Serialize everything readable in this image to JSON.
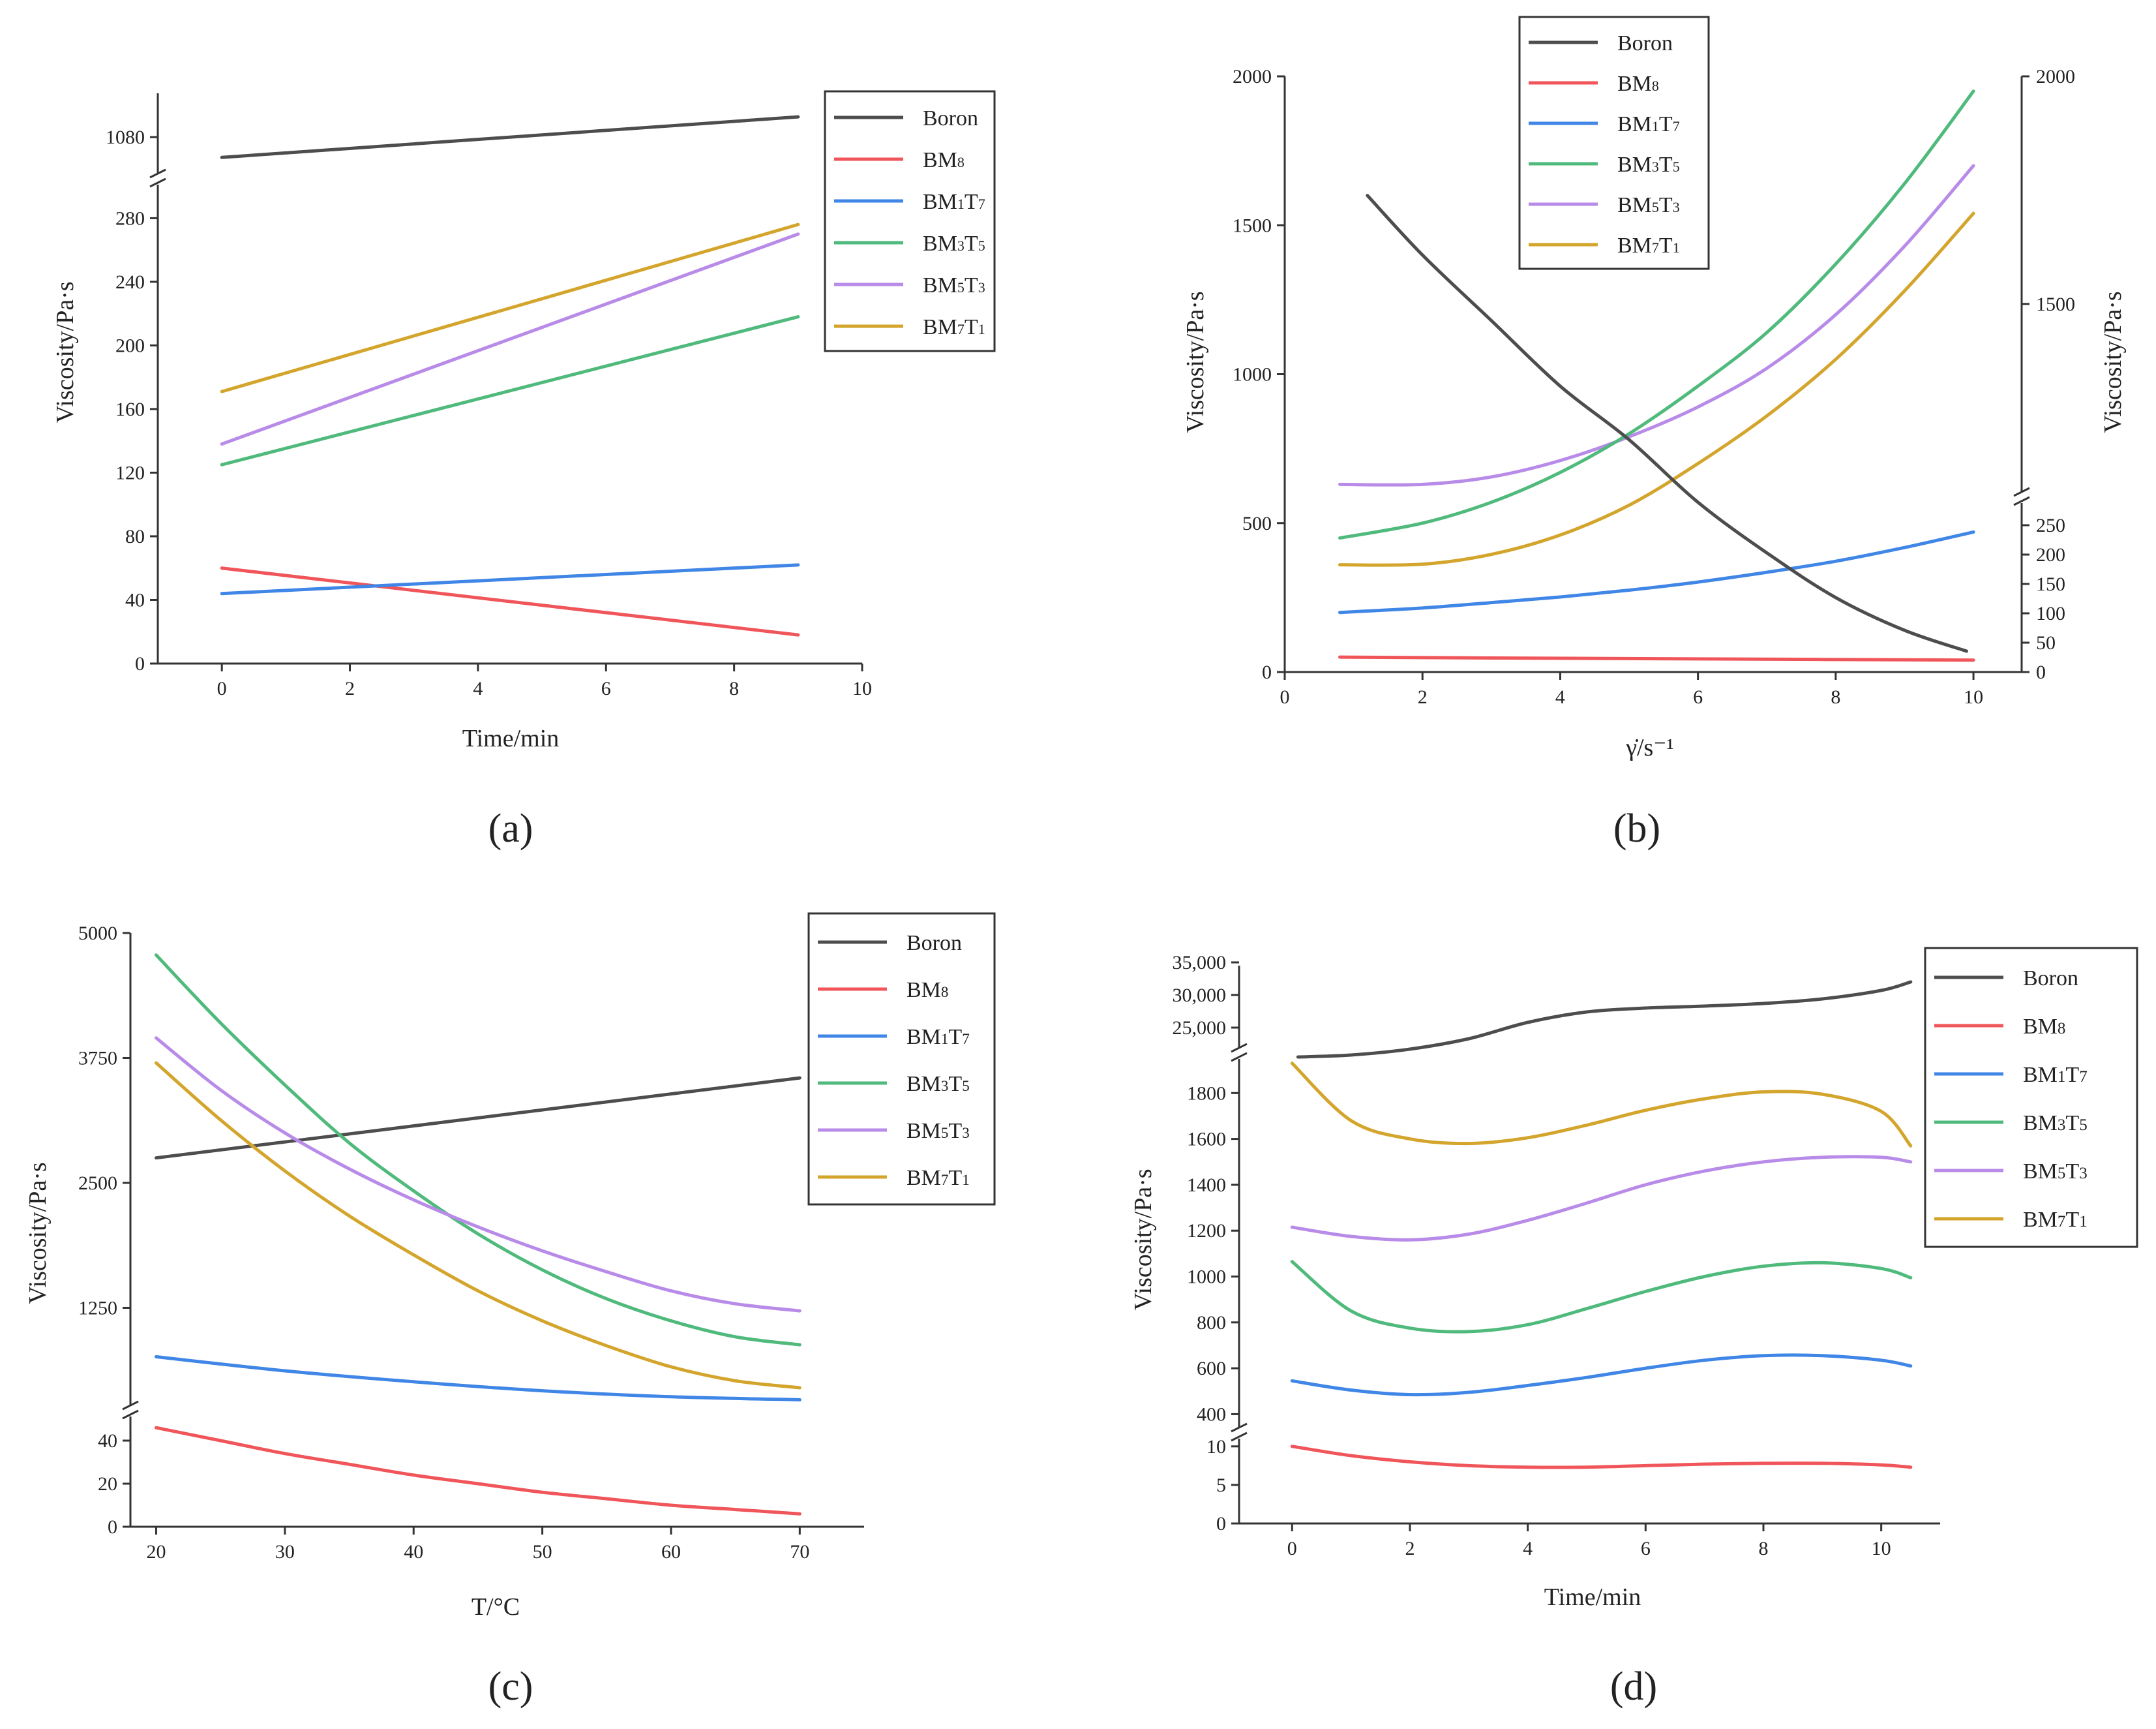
{
  "colors": {
    "Boron": "#4d4d4d",
    "BM8": "#f0555a",
    "BM1T7": "#3f86e6",
    "BM3T5": "#4fba7c",
    "BM5T3": "#b88be8",
    "BM7T1": "#d4a52c"
  },
  "chart_data": [
    {
      "panel": "a",
      "type": "line",
      "caption": "(a)",
      "xlabel": "Time/min",
      "ylabel": "Viscosity/Pa·s",
      "xlim": [
        -1,
        10
      ],
      "xticks": [
        0,
        2,
        4,
        6,
        8,
        10
      ],
      "axis_break": {
        "lower_range": [
          0,
          290
        ],
        "upper_range": [
          1070,
          1092
        ]
      },
      "yticks_lower": [
        0,
        40,
        80,
        120,
        160,
        200,
        240,
        280
      ],
      "yticks_upper": [
        1080
      ],
      "legend": {
        "position": "top-right",
        "entries": [
          "Boron",
          "BM8",
          "BM1T7",
          "BM3T5",
          "BM5T3",
          "BM7T1"
        ]
      },
      "series": [
        {
          "name": "Boron",
          "segment": "upper",
          "x": [
            0,
            9
          ],
          "y": [
            1074,
            1086
          ]
        },
        {
          "name": "BM8",
          "segment": "lower",
          "x": [
            0,
            9
          ],
          "y": [
            60,
            18
          ]
        },
        {
          "name": "BM1T7",
          "segment": "lower",
          "x": [
            0,
            9
          ],
          "y": [
            44,
            62
          ]
        },
        {
          "name": "BM3T5",
          "segment": "lower",
          "x": [
            0,
            9
          ],
          "y": [
            125,
            218
          ]
        },
        {
          "name": "BM5T3",
          "segment": "lower",
          "x": [
            0,
            9
          ],
          "y": [
            138,
            270
          ]
        },
        {
          "name": "BM7T1",
          "segment": "lower",
          "x": [
            0,
            9
          ],
          "y": [
            171,
            276
          ]
        }
      ]
    },
    {
      "panel": "b",
      "type": "line",
      "caption": "(b)",
      "xlabel": "γ̇/s⁻¹",
      "ylabel": "Viscosity/Pa·s",
      "ylabel_right": "Viscosity/Pa·s",
      "xlim": [
        0,
        10.7
      ],
      "xticks": [
        0,
        2,
        4,
        6,
        8,
        10
      ],
      "ylim_left": [
        0,
        2000
      ],
      "yticks_left": [
        0,
        500,
        1000,
        1500,
        2000
      ],
      "right_axis": {
        "lower_range": [
          0,
          280
        ],
        "upper_range": [
          1100,
          2000
        ],
        "yticks_lower": [
          0,
          50,
          100,
          150,
          200,
          250
        ],
        "yticks_upper": [
          1500,
          2000
        ]
      },
      "legend": {
        "position": "top-center",
        "entries": [
          "Boron",
          "BM8",
          "BM1T7",
          "BM3T5",
          "BM5T3",
          "BM7T1"
        ]
      },
      "series": [
        {
          "name": "Boron",
          "axis": "left",
          "x": [
            1.2,
            2,
            3,
            4,
            5,
            6,
            7,
            8,
            9,
            9.9
          ],
          "y": [
            1600,
            1400,
            1180,
            960,
            780,
            570,
            400,
            250,
            140,
            70
          ]
        },
        {
          "name": "BM8",
          "axis": "left",
          "x": [
            0.8,
            3,
            6,
            10
          ],
          "y": [
            50,
            47,
            44,
            40
          ]
        },
        {
          "name": "BM1T7",
          "axis": "left",
          "x": [
            0.8,
            2,
            3,
            4,
            5,
            6,
            7,
            8,
            9,
            10
          ],
          "y": [
            200,
            215,
            233,
            252,
            275,
            302,
            335,
            372,
            418,
            470
          ]
        },
        {
          "name": "BM3T5",
          "axis": "left",
          "x": [
            0.8,
            2,
            3,
            4,
            5,
            6,
            7,
            8,
            9,
            10
          ],
          "y": [
            450,
            500,
            570,
            670,
            800,
            960,
            1140,
            1370,
            1640,
            1950
          ]
        },
        {
          "name": "BM5T3",
          "axis": "left",
          "x": [
            0.8,
            2,
            3,
            4,
            5,
            6,
            7,
            8,
            9,
            10
          ],
          "y": [
            630,
            630,
            655,
            710,
            790,
            890,
            1020,
            1200,
            1430,
            1700
          ]
        },
        {
          "name": "BM7T1",
          "axis": "left",
          "x": [
            0.8,
            2,
            3,
            4,
            5,
            6,
            7,
            8,
            9,
            10
          ],
          "y": [
            360,
            362,
            395,
            460,
            560,
            700,
            860,
            1050,
            1280,
            1540
          ]
        }
      ]
    },
    {
      "panel": "c",
      "type": "line",
      "caption": "(c)",
      "xlabel": "T/°C",
      "ylabel": "Viscosity/Pa·s",
      "xlim": [
        18,
        75
      ],
      "xticks": [
        20,
        30,
        40,
        50,
        60,
        70
      ],
      "axis_break": {
        "lower_range": [
          0,
          50
        ],
        "upper_range": [
          300,
          5000
        ]
      },
      "yticks_lower": [
        0,
        20,
        40
      ],
      "yticks_upper": [
        1250,
        2500,
        3750,
        5000
      ],
      "legend": {
        "position": "top-right",
        "entries": [
          "Boron",
          "BM8",
          "BM1T7",
          "BM3T5",
          "BM5T3",
          "BM7T1"
        ]
      },
      "series": [
        {
          "name": "Boron",
          "segment": "upper",
          "x": [
            20,
            70
          ],
          "y": [
            2750,
            3550
          ]
        },
        {
          "name": "BM8",
          "segment": "lower",
          "x": [
            20,
            25,
            30,
            35,
            40,
            45,
            50,
            55,
            60,
            65,
            70
          ],
          "y": [
            46,
            40,
            34,
            29,
            24,
            20,
            16,
            13,
            10,
            8,
            6
          ]
        },
        {
          "name": "BM1T7",
          "segment": "upper",
          "x": [
            20,
            30,
            40,
            50,
            60,
            70
          ],
          "y": [
            760,
            620,
            510,
            420,
            360,
            330
          ]
        },
        {
          "name": "BM3T5",
          "segment": "upper",
          "x": [
            20,
            25,
            30,
            35,
            40,
            45,
            50,
            55,
            60,
            65,
            70
          ],
          "y": [
            4780,
            4100,
            3480,
            2900,
            2420,
            1990,
            1630,
            1340,
            1120,
            960,
            880
          ]
        },
        {
          "name": "BM5T3",
          "segment": "upper",
          "x": [
            20,
            25,
            30,
            35,
            40,
            45,
            50,
            55,
            60,
            65,
            70
          ],
          "y": [
            3950,
            3430,
            3000,
            2640,
            2330,
            2060,
            1820,
            1610,
            1420,
            1290,
            1220
          ]
        },
        {
          "name": "BM7T1",
          "segment": "upper",
          "x": [
            20,
            25,
            30,
            35,
            40,
            45,
            50,
            55,
            60,
            65,
            70
          ],
          "y": [
            3700,
            3130,
            2620,
            2170,
            1780,
            1420,
            1120,
            870,
            660,
            520,
            450
          ]
        }
      ]
    },
    {
      "panel": "d",
      "type": "line",
      "caption": "(d)",
      "xlabel": "Time/min",
      "ylabel": "Viscosity/Pa·s",
      "xlim": [
        -0.9,
        11
      ],
      "xticks": [
        0,
        2,
        4,
        6,
        8,
        10
      ],
      "axis_break": {
        "bottom_range": [
          0,
          11
        ],
        "middle_range": [
          350,
          2000
        ],
        "top_range": [
          20000,
          36000
        ]
      },
      "yticks_bottom": [
        0,
        5,
        10
      ],
      "yticks_middle": [
        400,
        600,
        800,
        1000,
        1200,
        1400,
        1600,
        1800
      ],
      "yticks_top": [
        "25,000",
        "30,000",
        "35,000"
      ],
      "yticks_top_values": [
        25000,
        30000,
        35000
      ],
      "legend": {
        "position": "top-right",
        "entries": [
          "Boron",
          "BM8",
          "BM1T7",
          "BM3T5",
          "BM5T3",
          "BM7T1"
        ]
      },
      "series": [
        {
          "name": "Boron",
          "segment": "top",
          "x": [
            0.1,
            1,
            2,
            3,
            4,
            5,
            6,
            7,
            8,
            9,
            10,
            10.5
          ],
          "y": [
            20500,
            20800,
            21700,
            23300,
            25800,
            27400,
            28000,
            28300,
            28700,
            29400,
            30700,
            32000
          ]
        },
        {
          "name": "BM8",
          "segment": "bottom",
          "x": [
            0,
            1,
            2,
            3,
            4,
            5,
            6,
            7,
            8,
            9,
            10,
            10.5
          ],
          "y": [
            10,
            8.8,
            8,
            7.5,
            7.3,
            7.3,
            7.5,
            7.7,
            7.8,
            7.8,
            7.6,
            7.3
          ]
        },
        {
          "name": "BM1T7",
          "segment": "middle",
          "x": [
            0,
            1,
            2,
            3,
            4,
            5,
            6,
            7,
            8,
            9,
            10,
            10.5
          ],
          "y": [
            545,
            505,
            485,
            495,
            525,
            560,
            600,
            635,
            655,
            655,
            635,
            610
          ]
        },
        {
          "name": "BM3T5",
          "segment": "middle",
          "x": [
            0,
            1,
            2,
            3,
            4,
            5,
            6,
            7,
            8,
            9,
            10,
            10.5
          ],
          "y": [
            1065,
            850,
            775,
            760,
            790,
            860,
            935,
            1000,
            1045,
            1060,
            1035,
            995
          ]
        },
        {
          "name": "BM5T3",
          "segment": "middle",
          "x": [
            0,
            1,
            2,
            3,
            4,
            5,
            6,
            7,
            8,
            9,
            10,
            10.5
          ],
          "y": [
            1215,
            1175,
            1160,
            1185,
            1245,
            1320,
            1400,
            1460,
            1500,
            1520,
            1520,
            1500
          ]
        },
        {
          "name": "BM7T1",
          "segment": "middle",
          "x": [
            0,
            1,
            2,
            3,
            4,
            5,
            6,
            7,
            8,
            9,
            10,
            10.5
          ],
          "y": [
            1930,
            1680,
            1600,
            1580,
            1605,
            1660,
            1725,
            1775,
            1805,
            1795,
            1720,
            1570
          ]
        }
      ]
    }
  ]
}
